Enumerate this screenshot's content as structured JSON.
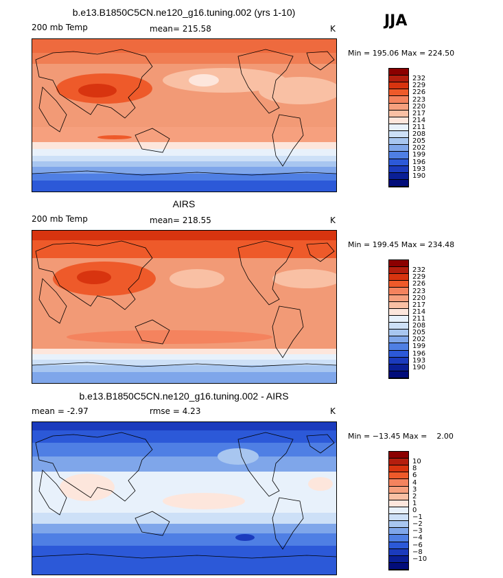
{
  "season": "JJA",
  "panels": [
    {
      "title": "b.e13.B1850C5CN.ne120_g16.tuning.002 (yrs 1-10)",
      "left": "200 mb Temp",
      "middle": "mean= 215.58",
      "right": "K",
      "minmax": "Min = 195.06 Max = 224.50"
    },
    {
      "title": "AIRS",
      "left": "200 mb Temp",
      "middle": "mean= 218.55",
      "right": "K",
      "minmax": "Min = 199.45 Max = 234.48"
    },
    {
      "title": "b.e13.B1850C5CN.ne120_g16.tuning.002 - AIRS",
      "left": "mean =   -2.97",
      "middle": "rmse =    4.23",
      "right": "K",
      "minmax": "Min = −13.45 Max =    2.00"
    }
  ],
  "colorbar_temp": {
    "colors": [
      "#8b0000",
      "#b41e0e",
      "#d8340f",
      "#ee5a2a",
      "#f4835e",
      "#f6a07e",
      "#f9c0a4",
      "#fde6dc",
      "#e8f1fb",
      "#cde0f7",
      "#a8c6f0",
      "#7fa6ea",
      "#4f7fe4",
      "#2c59d8",
      "#1b3bbd",
      "#0a1f96",
      "#020d7a"
    ],
    "labels": [
      "232",
      "229",
      "226",
      "223",
      "220",
      "217",
      "214",
      "211",
      "208",
      "205",
      "202",
      "199",
      "196",
      "193",
      "190"
    ]
  },
  "colorbar_diff": {
    "colors": [
      "#8b0000",
      "#b41e0e",
      "#d8340f",
      "#ee5a2a",
      "#f4835e",
      "#f6a07e",
      "#f9c0a4",
      "#fde6dc",
      "#e8f1fb",
      "#cde0f7",
      "#a8c6f0",
      "#7fa6ea",
      "#4f7fe4",
      "#2c59d8",
      "#1b3bbd",
      "#0a1f96",
      "#020d7a"
    ],
    "labels": [
      "10",
      "8",
      "6",
      "4",
      "3",
      "2",
      "1",
      "0",
      "−1",
      "−2",
      "−3",
      "−4",
      "−6",
      "−8",
      "−10"
    ]
  }
}
